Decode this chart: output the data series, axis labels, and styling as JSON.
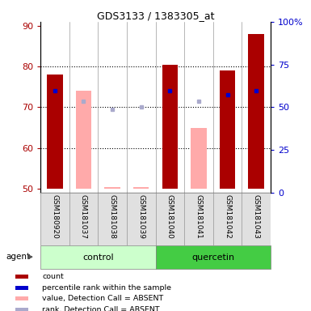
{
  "title": "GDS3133 / 1383305_at",
  "samples": [
    "GSM180920",
    "GSM181037",
    "GSM181038",
    "GSM181039",
    "GSM181040",
    "GSM181041",
    "GSM181042",
    "GSM181043"
  ],
  "ylim_left": [
    49,
    91
  ],
  "ylim_right": [
    0,
    100
  ],
  "yticks_left": [
    50,
    60,
    70,
    80,
    90
  ],
  "yticks_right": [
    0,
    25,
    50,
    75,
    100
  ],
  "ytick_labels_right": [
    "0",
    "25",
    "50",
    "75",
    "100%"
  ],
  "bar_bottom": 50,
  "red_bar_heights": [
    78.0,
    null,
    null,
    null,
    80.5,
    null,
    79.0,
    88.0
  ],
  "pink_bar_heights": [
    null,
    74.0,
    50.5,
    50.5,
    null,
    65.0,
    null,
    null
  ],
  "blue_square_y": [
    74.0,
    null,
    null,
    null,
    74.0,
    null,
    73.0,
    74.0
  ],
  "light_blue_square_y": [
    null,
    71.5,
    69.5,
    70.0,
    null,
    71.5,
    null,
    null
  ],
  "red_color": "#aa0000",
  "pink_color": "#ffaaaa",
  "blue_color": "#0000cc",
  "light_blue_color": "#aaaacc",
  "control_color": "#ccffcc",
  "quercetin_color": "#44cc44",
  "bar_width": 0.55,
  "n_samples": 8,
  "n_control": 4,
  "legend_items": [
    [
      "#aa0000",
      "count"
    ],
    [
      "#0000cc",
      "percentile rank within the sample"
    ],
    [
      "#ffaaaa",
      "value, Detection Call = ABSENT"
    ],
    [
      "#aaaacc",
      "rank, Detection Call = ABSENT"
    ]
  ]
}
